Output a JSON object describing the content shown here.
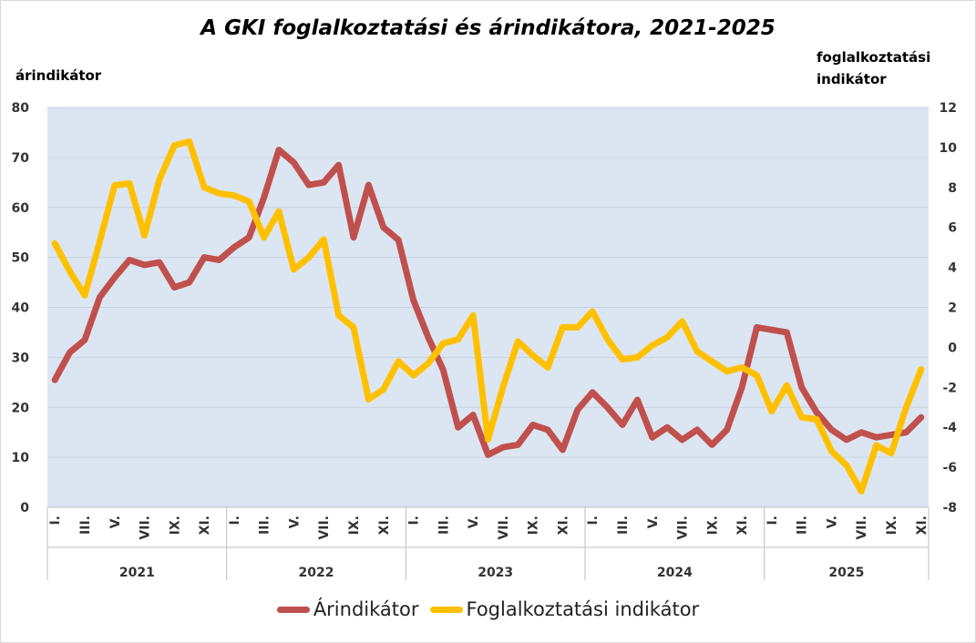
{
  "title": "A GKI foglalkoztatási és árindikátora, 2021-2025",
  "left_axis_title": "árindikátor",
  "right_axis_title_line1": "foglalkoztatási",
  "right_axis_title_line2": "indikátor",
  "colors": {
    "plot_bg": "#dce6f2",
    "arindikator": "#c0504d",
    "foglalkoztatasi": "#ffc000",
    "grid": "#c8d2e0"
  },
  "chart_data": {
    "type": "line",
    "title": "A GKI foglalkoztatási és árindikátora, 2021-2025",
    "ylabel": "árindikátor",
    "y2label": "foglalkoztatási indikátor",
    "ylim": [
      0,
      80
    ],
    "y2lim": [
      -8,
      12
    ],
    "yticks": [
      0,
      10,
      20,
      30,
      40,
      50,
      60,
      70,
      80
    ],
    "y2ticks": [
      -8,
      -6,
      -4,
      -2,
      0,
      2,
      4,
      6,
      8,
      10,
      12
    ],
    "grid": true,
    "legend": "bottom",
    "month_tick_labels": [
      "I.",
      "III.",
      "V.",
      "VII.",
      "IX.",
      "XI."
    ],
    "years": [
      "2021",
      "2022",
      "2023",
      "2024",
      "2025"
    ],
    "series": [
      {
        "name": "Árindikátor",
        "axis": "left",
        "values": [
          25.5,
          31,
          33.5,
          42,
          46,
          49.5,
          48.5,
          49,
          44,
          45,
          50,
          49.5,
          52,
          54,
          62,
          71.5,
          69,
          64.5,
          65,
          68.5,
          54,
          64.5,
          56,
          53.5,
          41.5,
          34,
          27.5,
          16,
          18.5,
          10.5,
          12,
          12.5,
          16.5,
          15.5,
          11.5,
          19.5,
          23,
          20,
          16.5,
          21.5,
          14,
          16,
          13.5,
          15.5,
          12.5,
          15.5,
          24,
          36,
          35.5,
          35,
          24,
          19,
          15.5,
          13.5,
          15,
          14,
          14.5,
          15,
          18
        ]
      },
      {
        "name": "Foglalkoztatási indikátor",
        "axis": "right",
        "values": [
          5.2,
          3.8,
          2.6,
          5.3,
          8.1,
          8.2,
          5.6,
          8.4,
          10.1,
          10.3,
          8,
          7.7,
          7.6,
          7.3,
          5.5,
          6.8,
          3.9,
          4.5,
          5.4,
          1.6,
          1,
          -2.6,
          -2.1,
          -0.7,
          -1.4,
          -0.8,
          0.2,
          0.4,
          1.6,
          -4.6,
          -2,
          0.3,
          -0.4,
          -1,
          1,
          1,
          1.8,
          0.4,
          -0.6,
          -0.5,
          0.1,
          0.5,
          1.3,
          -0.2,
          -0.7,
          -1.2,
          -1,
          -1.4,
          -3.2,
          -1.9,
          -3.5,
          -3.6,
          -5.2,
          -5.9,
          -7.2,
          -4.9,
          -5.3,
          -3,
          -1.1
        ]
      }
    ]
  }
}
